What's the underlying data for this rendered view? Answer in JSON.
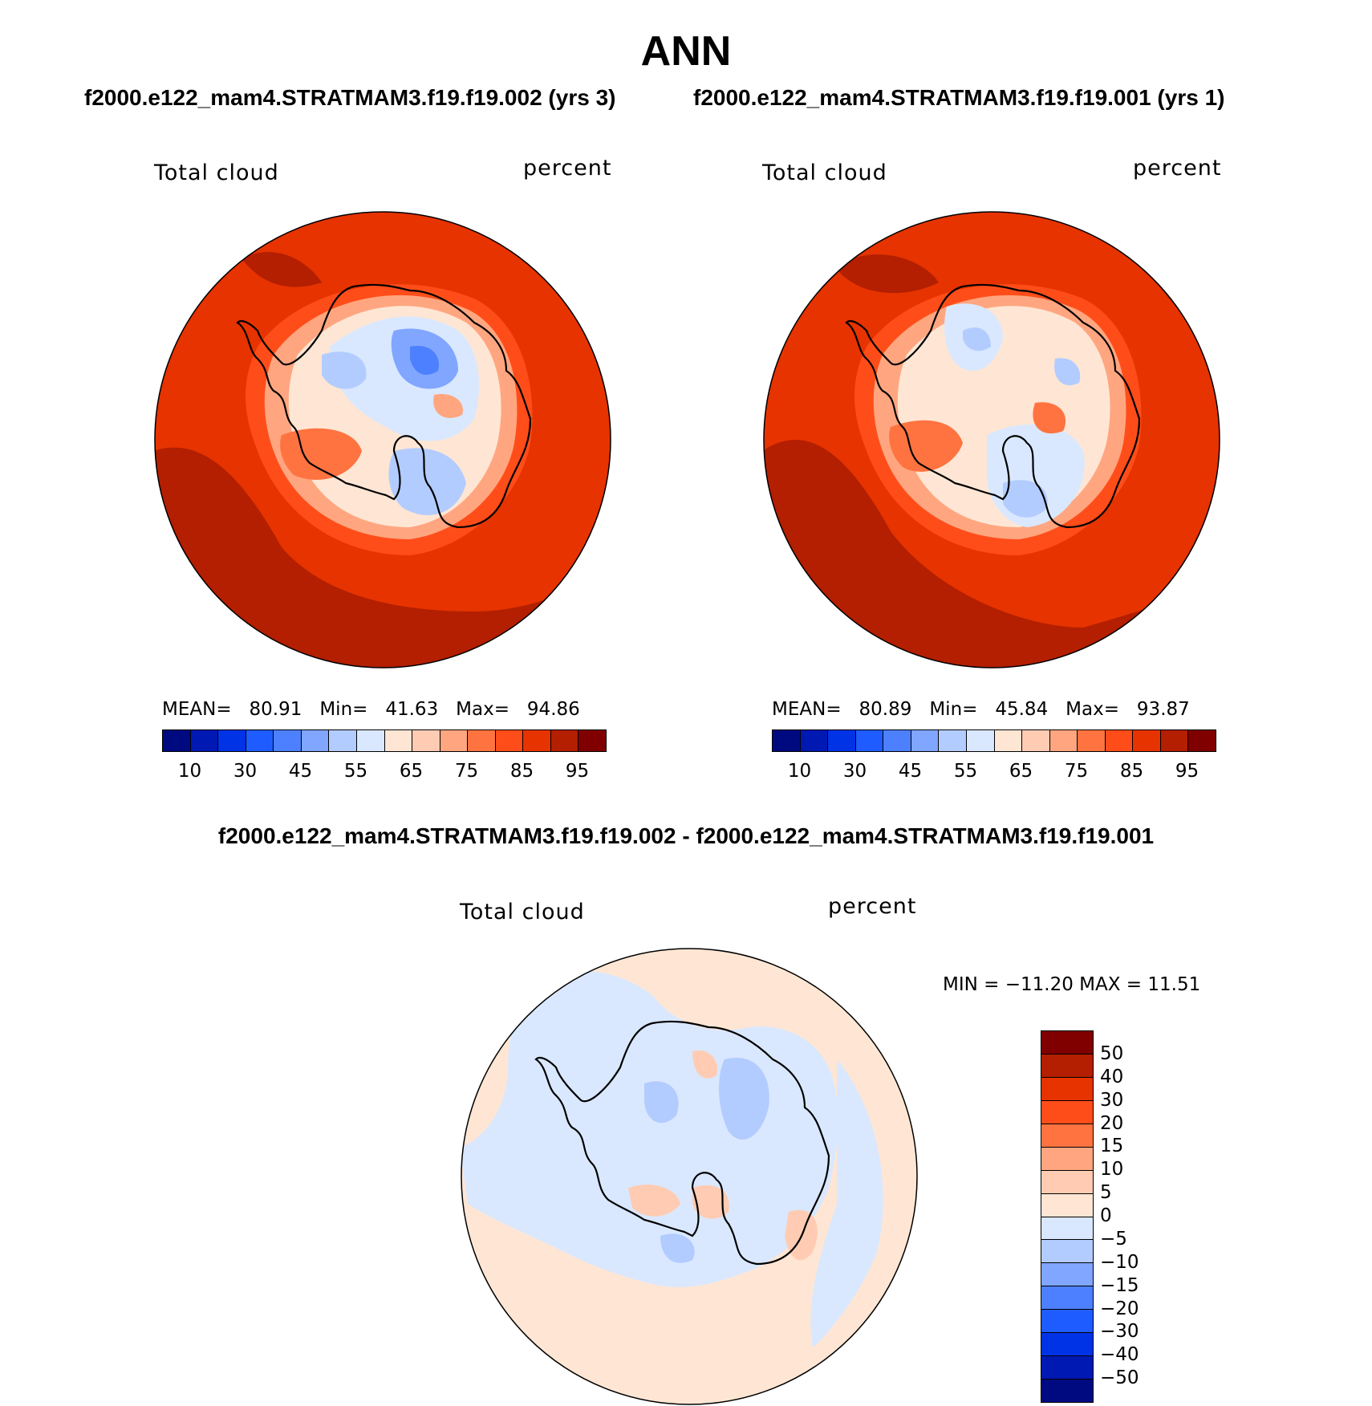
{
  "title": "ANN",
  "case_left": "f2000.e122_mam4.STRATMAM3.f19.f19.002 (yrs 3)",
  "case_right": "f2000.e122_mam4.STRATMAM3.f19.f19.001 (yrs 1)",
  "diff_title": "f2000.e122_mam4.STRATMAM3.f19.f19.002 - f2000.e122_mam4.STRATMAM3.f19.f19.001",
  "panels": [
    {
      "variable": "Total cloud",
      "units": "percent",
      "mean_label": "MEAN=",
      "mean": "80.91",
      "min_label": "Min=",
      "min": "41.63",
      "max_label": "Max=",
      "max": "94.86"
    },
    {
      "variable": "Total cloud",
      "units": "percent",
      "mean_label": "MEAN=",
      "mean": "80.89",
      "min_label": "Min=",
      "min": "45.84",
      "max_label": "Max=",
      "max": "93.87"
    }
  ],
  "diff_panel": {
    "variable": "Total cloud",
    "units": "percent",
    "minmax": "MIN = −11.20 MAX =   11.51"
  },
  "colorbar": {
    "colors": [
      "#000a80",
      "#0019b3",
      "#0033e6",
      "#1f5cff",
      "#4d80ff",
      "#80a6ff",
      "#b3ccff",
      "#d9e8ff",
      "#ffe6d4",
      "#ffccb3",
      "#ffa680",
      "#ff7340",
      "#ff4d1a",
      "#e63300",
      "#b31f00",
      "#800000"
    ],
    "ticks": [
      "10",
      "30",
      "45",
      "55",
      "65",
      "75",
      "85",
      "95"
    ]
  },
  "diff_colorbar": {
    "colors": [
      "#800000",
      "#b31f00",
      "#e63300",
      "#ff4d1a",
      "#ff7340",
      "#ffa680",
      "#ffccb3",
      "#ffe6d4",
      "#d9e8ff",
      "#b3ccff",
      "#80a6ff",
      "#4d80ff",
      "#1f5cff",
      "#0033e6",
      "#0019b3",
      "#000a80"
    ],
    "ticks": [
      "50",
      "40",
      "30",
      "20",
      "15",
      "10",
      "5",
      "0",
      "−5",
      "−10",
      "−15",
      "−20",
      "−30",
      "−40",
      "−50"
    ]
  }
}
